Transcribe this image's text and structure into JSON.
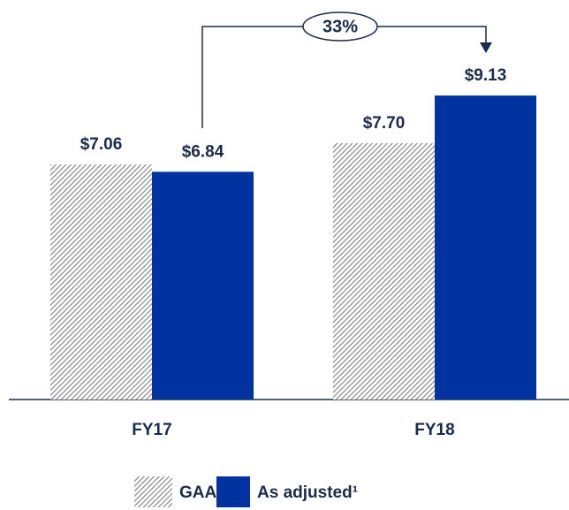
{
  "chart_data": {
    "type": "bar",
    "categories": [
      "FY17",
      "FY18"
    ],
    "series": [
      {
        "name": "GAAP",
        "color": "#7f7f7f",
        "pattern": "hatch",
        "values": [
          7.06,
          7.7
        ],
        "value_labels": [
          "$7.06",
          "$7.70"
        ]
      },
      {
        "name": "As adjusted¹",
        "color": "#0033a0",
        "values": [
          6.84,
          9.13
        ],
        "value_labels": [
          "$6.84",
          "$9.13"
        ]
      }
    ],
    "ylim": [
      0,
      12
    ],
    "annotations": [
      {
        "text": "33%"
      }
    ]
  }
}
